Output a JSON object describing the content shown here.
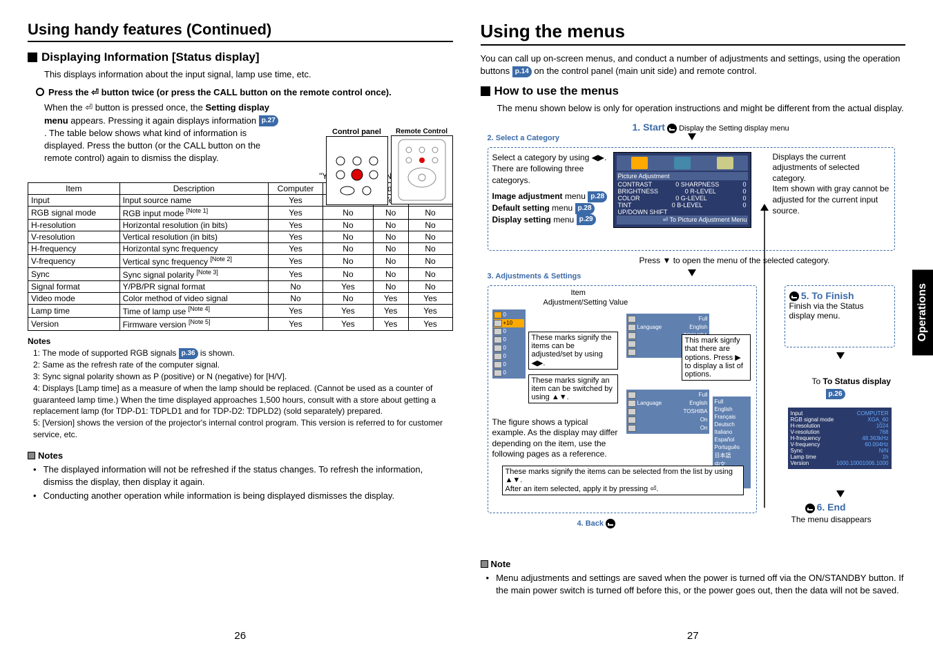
{
  "left": {
    "title": "Using handy features (Continued)",
    "sub1": "Displaying Information [Status display]",
    "sub1_desc": "This displays information about the input signal, lamp use time, etc.",
    "press_instruction": "Press the ⏎ button twice (or press the CALL button on the remote control once).",
    "when_text_a": "When the ⏎ button is pressed once, the ",
    "when_text_b": "Setting display menu",
    "when_text_c": " appears. Pressing it again displays information ",
    "when_text_d": ". The table below shows what kind of information is displayed. Press the button (or the CALL button on the remote control) again to dismiss the display.",
    "p27": "p.27",
    "panel_label_left": "Control panel",
    "panel_label_right": "Remote Control",
    "table_caption": "\"Yes\": displayed, \"No\": not displayed",
    "table": {
      "headers": [
        "Item",
        "Description",
        "Computer",
        "Y/PB/PR",
        "Video",
        "S-video"
      ],
      "rows": [
        [
          "Input",
          "Input source name",
          "Yes",
          "Yes",
          "Yes",
          "Yes"
        ],
        [
          "RGB signal mode",
          "RGB input mode [Note 1]",
          "Yes",
          "No",
          "No",
          "No"
        ],
        [
          "H-resolution",
          "Horizontal resolution (in bits)",
          "Yes",
          "No",
          "No",
          "No"
        ],
        [
          "V-resolution",
          "Vertical resolution (in bits)",
          "Yes",
          "No",
          "No",
          "No"
        ],
        [
          "H-frequency",
          "Horizontal sync frequency",
          "Yes",
          "No",
          "No",
          "No"
        ],
        [
          "V-frequency",
          "Vertical sync frequency [Note 2]",
          "Yes",
          "No",
          "No",
          "No"
        ],
        [
          "Sync",
          "Sync signal polarity [Note 3]",
          "Yes",
          "No",
          "No",
          "No"
        ],
        [
          "Signal format",
          "Y/PB/PR signal format",
          "No",
          "Yes",
          "No",
          "No"
        ],
        [
          "Video mode",
          "Color method of video signal",
          "No",
          "No",
          "Yes",
          "Yes"
        ],
        [
          "Lamp time",
          "Time of lamp use [Note 4]",
          "Yes",
          "Yes",
          "Yes",
          "Yes"
        ],
        [
          "Version",
          "Firmware version [Note 5]",
          "Yes",
          "Yes",
          "Yes",
          "Yes"
        ]
      ]
    },
    "notes_h": "Notes",
    "note1a": "1: The mode of supported RGB signals ",
    "p36": "p.36",
    "note1b": " is shown.",
    "note2": "2: Same as the refresh rate of the computer signal.",
    "note3": "3: Sync signal polarity shown as P (positive) or N (negative) for [H/V].",
    "note4": "4: Displays [Lamp time] as a measure of when the lamp should be replaced. (Cannot be used as a counter of guaranteed lamp time.) When the time displayed approaches 1,500 hours, consult with a store about getting a replacement lamp (for TDP-D1: TDPLD1 and for TDP-D2: TDPLD2) (sold separately) prepared.",
    "note5": "5: [Version] shows the version of the projector's internal control program. This version is referred to for customer service, etc.",
    "notes2_h": "Notes",
    "notes2_1": "The displayed information will not be refreshed if the status changes. To refresh the information, dismiss the display, then display it again.",
    "notes2_2": "Conducting another operation while information is being displayed dismisses the display.",
    "pagenum": "26"
  },
  "right": {
    "title": "Using the menus",
    "intro_a": "You can call up on-screen menus, and conduct a number of adjustments and settings, using the operation buttons ",
    "p14": "p.14",
    "intro_b": " on the control panel (main unit side) and remote control.",
    "sub": "How to use the menus",
    "sub_desc": "The menu shown below is only for operation instructions and might be different from the actual display.",
    "step1": "1. Start",
    "step1_text": "Display the Setting display menu",
    "step2": "2. Select a Category",
    "step2_text_a": "Select a category by using ◀▶.",
    "step2_text_b": "There are following three categorys.",
    "menu_img": "Image adjustment",
    "menu_def": "Default setting",
    "menu_disp": "Display setting",
    "menu_word": " menu",
    "p28": "p.28",
    "p29": "p.29",
    "step2_right_a": "Displays the current adjustments of selected category.",
    "step2_right_b": "Item shown with gray cannot be adjusted for the current input source.",
    "pic_adj": "Picture Adjustment",
    "pic_rows": [
      [
        "CONTRAST",
        "0"
      ],
      [
        "BRIGHTNESS",
        "0"
      ],
      [
        "COLOR",
        "0"
      ],
      [
        "TINT",
        "0"
      ],
      [
        "UP/DOWN SHIFT",
        ""
      ]
    ],
    "pic_rows2": [
      [
        "SHARPNESS",
        "0"
      ],
      [
        "R-LEVEL",
        "0"
      ],
      [
        "G-LEVEL",
        "0"
      ],
      [
        "B-LEVEL",
        "0"
      ],
      [
        "",
        ""
      ]
    ],
    "pic_footer": "⏎ To Picture Adjustment Menu",
    "press_open": "Press ▼ to open the menu of the selected category.",
    "step3": "3. Adjustments & Settings",
    "item_label": "Item",
    "adj_label": "Adjustment/Setting Value",
    "marks1": "These marks signify the items can be adjusted/set by using ◀▶.",
    "marks2": "These marks signify an item can be switched by using ▲▼.",
    "fig_text": "The figure shows a typical example. As the display may differ depending on the item, use the following pages as a reference.",
    "marks3": "These marks signify the items can be selected from the list by using ▲▼.",
    "marks4": "After an item selected, apply it by pressing ⏎.",
    "opts_text": "This mark signfy that there are options. Press ▶ to display a list of options.",
    "options": [
      "Full",
      "English",
      "TOSHIBA",
      "On",
      "On"
    ],
    "lang_opts": [
      "Full",
      "English",
      "Français",
      "Deutsch",
      "Italiano",
      "Español",
      "Português",
      "日本語",
      "中文",
      "中文",
      "한국어"
    ],
    "step4": "4. Back",
    "step5": "5. To Finish",
    "step5_text": "Finish via the Status display menu.",
    "to_status": "To Status display",
    "p26": "p.26",
    "status_rows": [
      [
        "Input",
        "COMPUTER"
      ],
      [
        "RGB signal mode",
        "XGA_60"
      ],
      [
        "H-resolution",
        "1024"
      ],
      [
        "V-resolution",
        "768"
      ],
      [
        "H-frequency",
        "48.363kHz"
      ],
      [
        "V-frequency",
        "60.004Hz"
      ],
      [
        "Sync",
        "N/N"
      ],
      [
        "Lamp time",
        "1h"
      ],
      [
        "Version",
        "1000.10001006.1000"
      ]
    ],
    "step6": "6. End",
    "step6_text": "The menu disappears",
    "note_h": "Note",
    "note_text": "Menu adjustments and settings are saved when the power is turned off via the ON/STANDBY button. If the main power switch is turned off before this, or the power goes out, then the data will not be saved.",
    "pagenum": "27",
    "sidetab": "Operations"
  }
}
